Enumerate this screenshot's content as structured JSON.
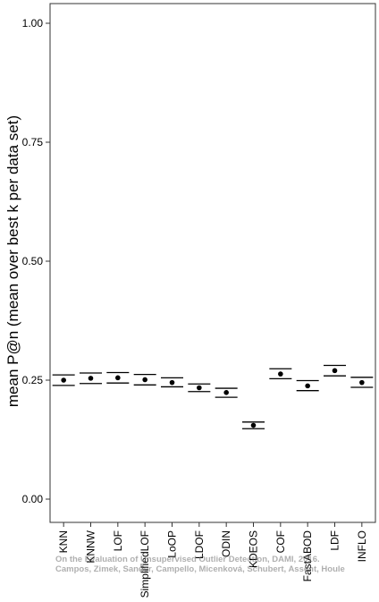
{
  "chart_data": {
    "type": "scatter",
    "ylabel": "mean P@n (mean over best k per data set)",
    "xlabel": "",
    "ylim": [
      0,
      1
    ],
    "yticks": [
      "0.00",
      "0.25",
      "0.50",
      "0.75",
      "1.00"
    ],
    "categories": [
      "KNN",
      "KNNW",
      "LOF",
      "SimplifiedLOF",
      "LoOP",
      "LDOF",
      "ODIN",
      "KDEOS",
      "COF",
      "FastABOD",
      "LDF",
      "INFLO"
    ],
    "means": [
      0.25,
      0.254,
      0.255,
      0.251,
      0.245,
      0.234,
      0.224,
      0.155,
      0.263,
      0.238,
      0.27,
      0.245
    ],
    "lower": [
      0.239,
      0.243,
      0.244,
      0.24,
      0.236,
      0.226,
      0.214,
      0.148,
      0.253,
      0.228,
      0.259,
      0.235
    ],
    "upper": [
      0.261,
      0.265,
      0.266,
      0.262,
      0.255,
      0.242,
      0.233,
      0.162,
      0.274,
      0.249,
      0.281,
      0.256
    ],
    "grid": false
  },
  "watermark": {
    "line1": "On the Evaluation of Unsupervised Outlier Detection, DAMI, 2016.",
    "line2": "Campos, Zimek, Sander, Campello, Micenková, Schubert, Assent, Houle"
  }
}
